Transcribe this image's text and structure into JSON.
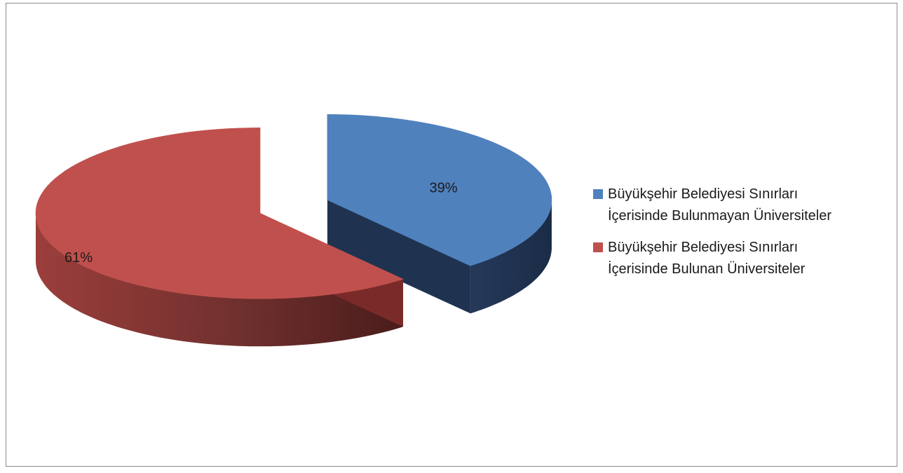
{
  "chart_data": {
    "type": "pie",
    "style": "3d-exploded",
    "title": "",
    "slices": [
      {
        "name": "Büyükşehir Belediyesi Sınırları İçerisinde Bulunmayan Üniversiteler",
        "name_lines": [
          "Büyükşehir Belediyesi Sınırları",
          "İçerisinde Bulunmayan Üniversiteler"
        ],
        "value": 39,
        "label": "39%",
        "color": "#4f81bd",
        "side_color": "#1f3350"
      },
      {
        "name": "Büyükşehir Belediyesi Sınırları İçerisinde Bulunan Üniversiteler",
        "name_lines": [
          "Büyükşehir Belediyesi Sınırları",
          "İçerisinde Bulunan Üniversiteler"
        ],
        "value": 61,
        "label": "61%",
        "color": "#c0504d",
        "side_color": "#7a2b29"
      }
    ],
    "legend_position": "right"
  }
}
